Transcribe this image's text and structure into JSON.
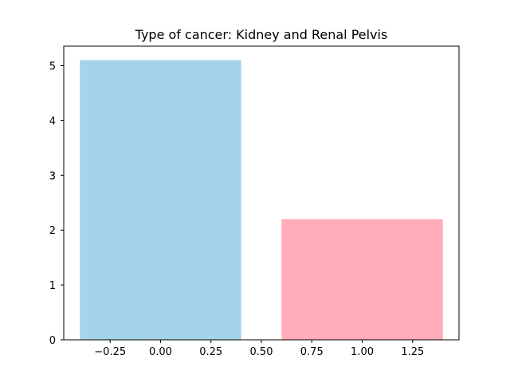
{
  "chart_data": {
    "type": "bar",
    "title": "Type of cancer: Kidney and Renal Pelvis",
    "xlabel": "",
    "ylabel": "",
    "bars": [
      {
        "x": 0,
        "value": 5.1,
        "color": "#a4d4ec"
      },
      {
        "x": 1,
        "value": 2.2,
        "color": "#ffadb9"
      }
    ],
    "bar_width": 0.8,
    "xlim": [
      -0.48,
      1.48
    ],
    "ylim": [
      0,
      5.355
    ],
    "x_ticks": [
      "−0.25",
      "0.00",
      "0.25",
      "0.50",
      "0.75",
      "1.00",
      "1.25"
    ],
    "x_tick_values": [
      -0.25,
      0,
      0.25,
      0.5,
      0.75,
      1.0,
      1.25
    ],
    "y_ticks": [
      "0",
      "1",
      "2",
      "3",
      "4",
      "5"
    ],
    "y_tick_values": [
      0,
      1,
      2,
      3,
      4,
      5
    ],
    "grid": false,
    "legend": "none"
  }
}
